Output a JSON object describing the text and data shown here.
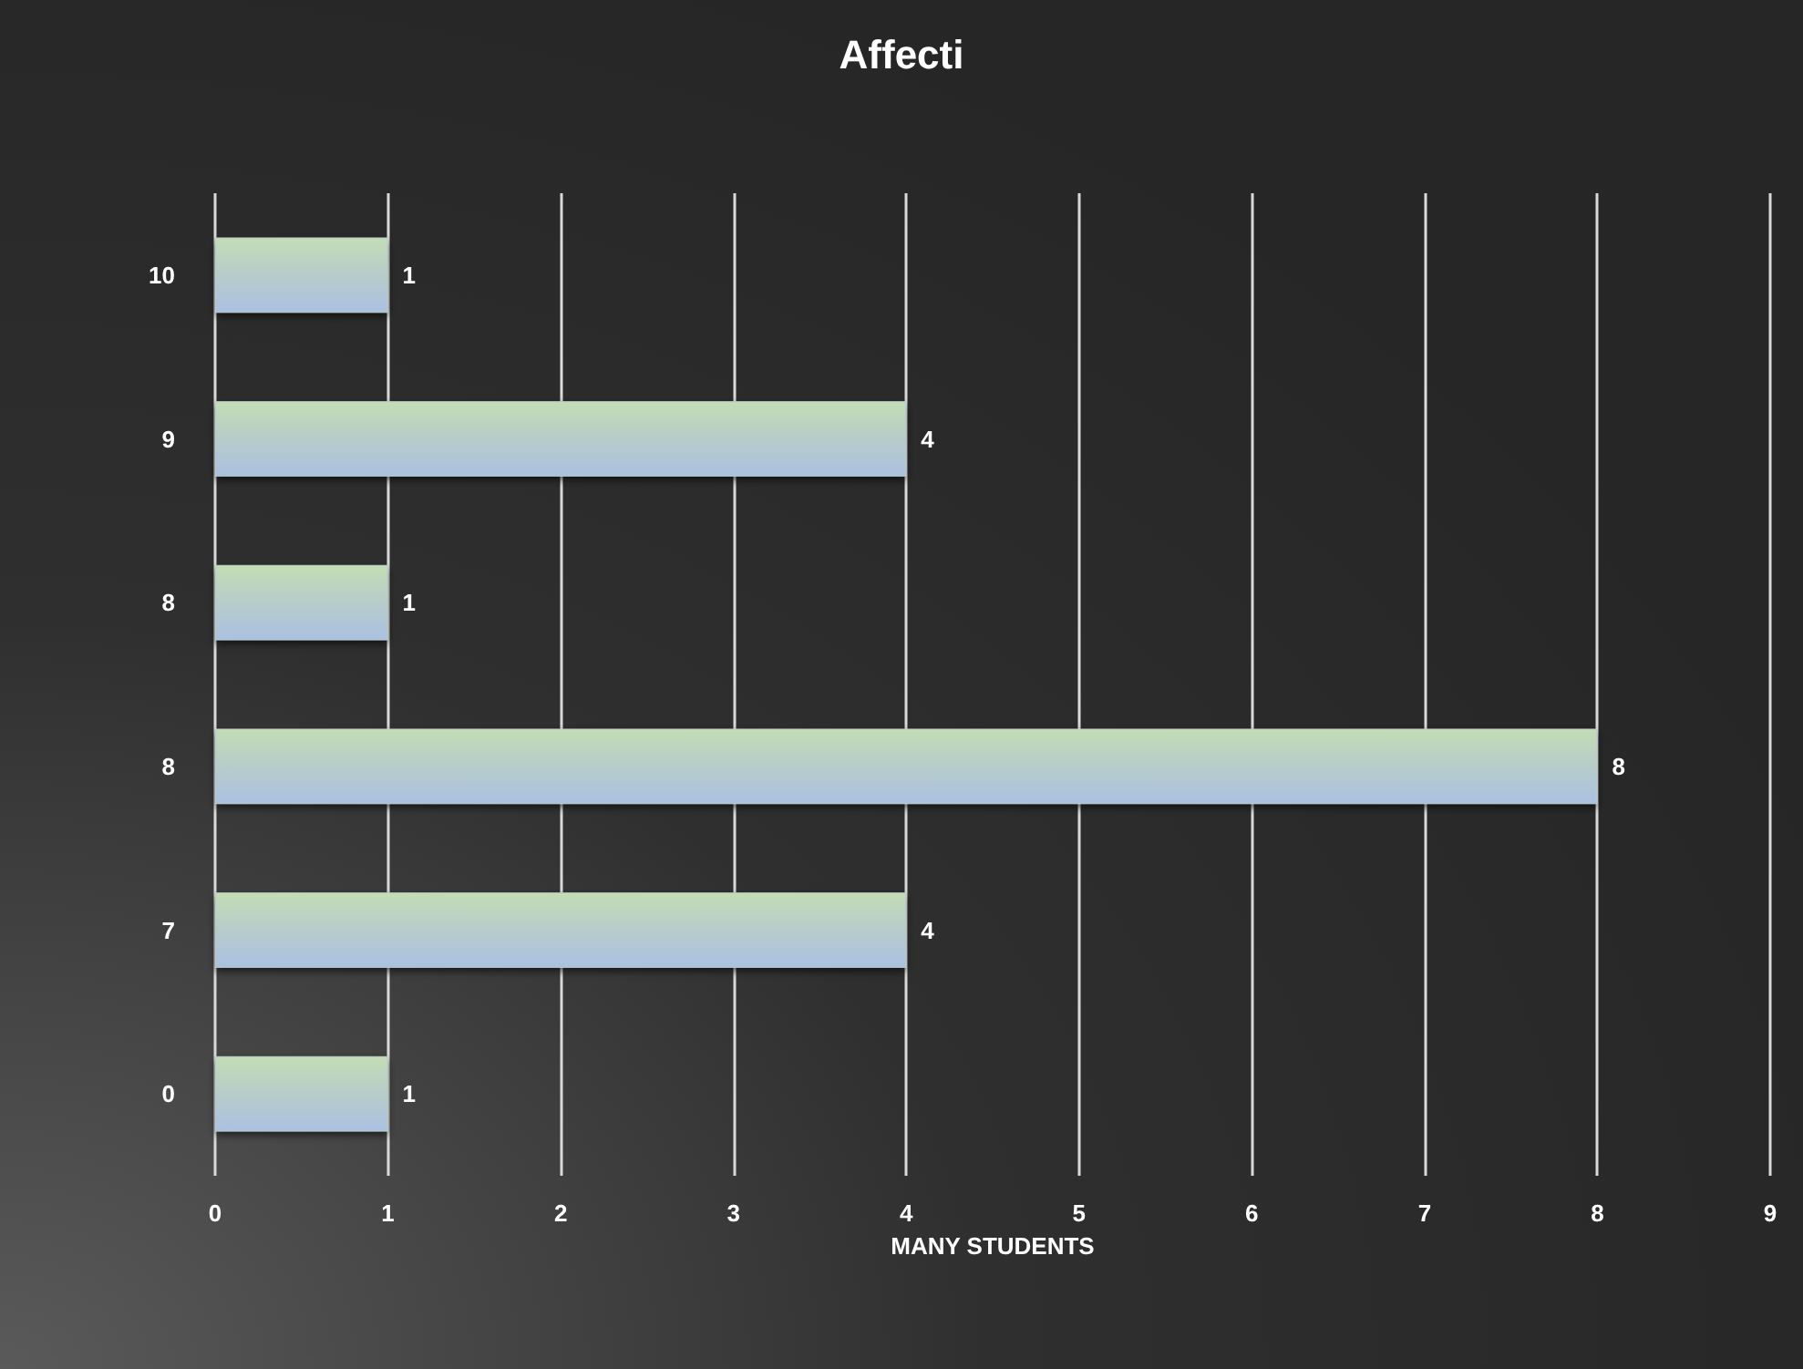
{
  "chart_data": {
    "type": "bar",
    "orientation": "horizontal",
    "title": "Affecti",
    "xlabel": "MANY STUDENTS",
    "categories": [
      "10",
      "9",
      "8",
      "8",
      "7",
      "0"
    ],
    "values": [
      1,
      4,
      1,
      8,
      4,
      1
    ],
    "color": "#b7ccca",
    "xlim": [
      0,
      9
    ],
    "xticks": [
      0,
      1,
      2,
      3,
      4,
      5,
      6,
      7,
      8,
      9
    ],
    "grid": "x",
    "data_labels": true
  }
}
